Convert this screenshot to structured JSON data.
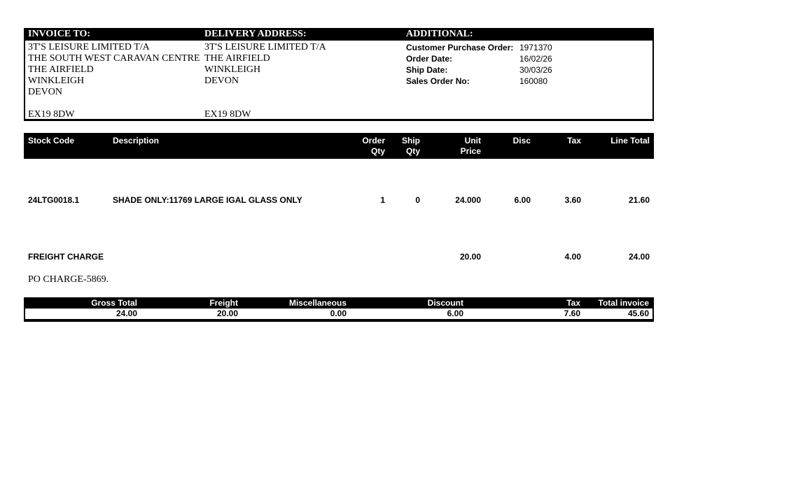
{
  "colors": {
    "band_bg": "#000000",
    "band_fg": "#ffffff",
    "page_bg": "#ffffff",
    "text": "#000000"
  },
  "invoice_to": {
    "header": "INVOICE TO:",
    "lines": [
      "3T'S LEISURE LIMITED T/A",
      "THE SOUTH WEST CARAVAN CENTRE",
      "THE AIRFIELD",
      "WINKLEIGH",
      "DEVON",
      "",
      "EX19 8DW"
    ]
  },
  "delivery": {
    "header": "DELIVERY ADDRESS:",
    "lines": [
      "3T'S LEISURE LIMITED T/A",
      "THE AIRFIELD",
      "WINKLEIGH",
      "DEVON",
      "",
      "",
      "EX19 8DW"
    ]
  },
  "additional": {
    "header": "ADDITIONAL:",
    "fields": [
      {
        "label": "Customer Purchase Order:",
        "value": "1971370"
      },
      {
        "label": "Order Date:",
        "value": "16/02/26"
      },
      {
        "label": "Ship Date:",
        "value": "30/03/26"
      },
      {
        "label": "Sales Order No:",
        "value": "160080"
      }
    ]
  },
  "table": {
    "header": {
      "stock_code": "Stock Code",
      "description": "Description",
      "order_l1": "Order",
      "order_l2": "Qty",
      "ship_l1": "Ship",
      "ship_l2": "Qty",
      "unit_l1": "Unit",
      "unit_l2": "Price",
      "disc": "Disc",
      "tax": "Tax",
      "line_total": "Line Total"
    },
    "rows": [
      {
        "stock_code": "24LTG0018.1",
        "description": "SHADE ONLY:11769 LARGE IGAL GLASS ONLY",
        "order_qty": "1",
        "ship_qty": "0",
        "unit_price": "24.000",
        "disc": "6.00",
        "tax": "3.60",
        "line_total": "21.60"
      },
      {
        "stock_code": "FREIGHT CHARGE",
        "description": "",
        "order_qty": "",
        "ship_qty": "",
        "unit_price": "20.00",
        "disc": "",
        "tax": "4.00",
        "line_total": "24.00"
      }
    ],
    "note": "PO CHARGE-5869."
  },
  "totals": {
    "items": [
      {
        "label": "Gross Total",
        "value": "24.00"
      },
      {
        "label": "Freight",
        "value": "20.00"
      },
      {
        "label": "Miscellaneous",
        "value": "0.00"
      },
      {
        "label": "Discount",
        "value": "6.00"
      },
      {
        "label": "Tax",
        "value": "7.60"
      },
      {
        "label": "Total invoice",
        "value": "45.60"
      }
    ]
  }
}
